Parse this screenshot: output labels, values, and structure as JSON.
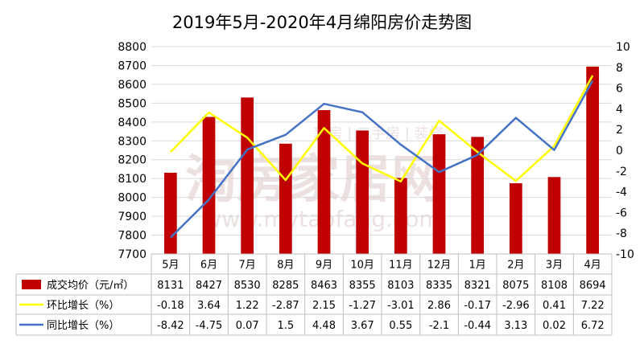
{
  "chart_data": {
    "type": "bar",
    "title": "2019年5月-2020年4月绵阳房价走势图",
    "categories": [
      "5月",
      "6月",
      "7月",
      "8月",
      "9月",
      "10月",
      "11月",
      "12月",
      "1月",
      "2月",
      "3月",
      "4月"
    ],
    "ylim_left": [
      7700,
      8800
    ],
    "ylim_right": [
      -10,
      10
    ],
    "left_ticks": [
      7700,
      7800,
      7900,
      8000,
      8100,
      8200,
      8300,
      8400,
      8500,
      8600,
      8700,
      8800
    ],
    "right_ticks": [
      -10,
      -8,
      -6,
      -4,
      -2,
      0,
      2,
      4,
      6,
      8,
      10
    ],
    "series": [
      {
        "name": "成交均价（元/㎡）",
        "type": "bar",
        "axis": "left",
        "color": "#C00000",
        "values": [
          8131,
          8427,
          8530,
          8285,
          8463,
          8355,
          8103,
          8335,
          8321,
          8075,
          8108,
          8694
        ],
        "labels": [
          "8131",
          "8427",
          "8530",
          "8285",
          "8463",
          "8355",
          "8103",
          "8335",
          "8321",
          "8075",
          "8108",
          "8694"
        ]
      },
      {
        "name": "环比增长（%）",
        "type": "line",
        "axis": "right",
        "color": "#FFFF00",
        "values": [
          -0.18,
          3.64,
          1.22,
          -2.87,
          2.15,
          -1.27,
          -3.01,
          2.86,
          -0.17,
          -2.96,
          0.41,
          7.22
        ],
        "labels": [
          "-0.18",
          "3.64",
          "1.22",
          "-2.87",
          "2.15",
          "-1.27",
          "-3.01",
          "2.86",
          "-0.17",
          "-2.96",
          "0.41",
          "7.22"
        ]
      },
      {
        "name": "同比增长（%）",
        "type": "line",
        "axis": "right",
        "color": "#4472C4",
        "values": [
          -8.42,
          -4.75,
          0.07,
          1.5,
          4.48,
          3.67,
          0.55,
          -2.1,
          -0.44,
          3.13,
          0.02,
          6.72
        ],
        "labels": [
          "-8.42",
          "-4.75",
          "0.07",
          "1.5",
          "4.48",
          "3.67",
          "0.55",
          "-2.1",
          "-0.44",
          "3.13",
          "0.02",
          "6.72"
        ]
      }
    ],
    "data_table": true
  },
  "watermark": {
    "text": "淘房家居网",
    "subtext": "新房 | 二手房 | 装修",
    "url": "www.mytaofang.com"
  }
}
